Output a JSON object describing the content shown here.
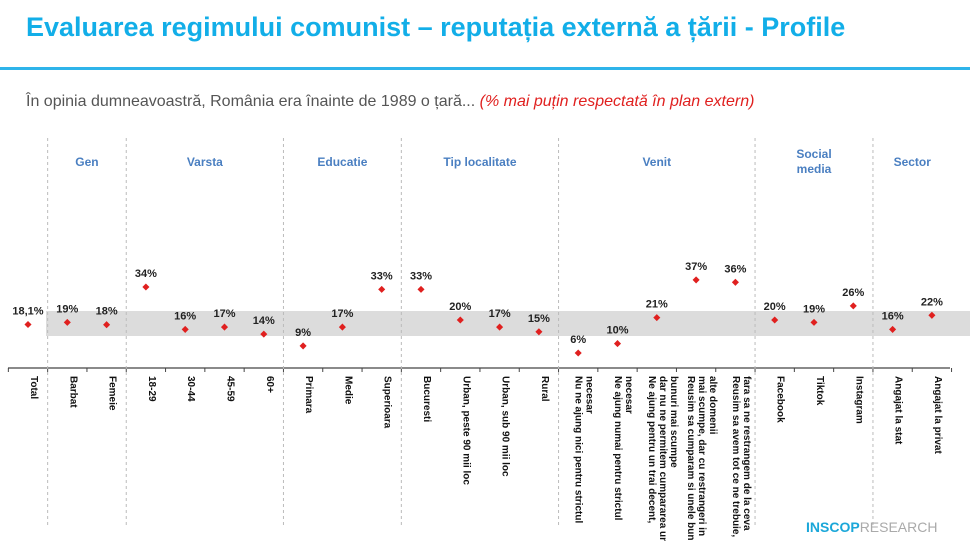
{
  "title": "Evaluarea regimului comunist – reputația externă a țării - Profile",
  "subtitle": "În opinia dumneavoastră, România era înainte de 1989 o țară...",
  "subtitle_highlight": "(% mai puțin respectată în plan extern)",
  "logo": {
    "brand": "INSCOP",
    "suffix": "RESEARCH"
  },
  "colors": {
    "title": "#12aee8",
    "marker": "#e0201f",
    "group_label": "#4a7fc1",
    "band": "#dcdcdc"
  },
  "chart_data": {
    "type": "scatter",
    "groups": [
      {
        "label": "",
        "count": 1
      },
      {
        "label": "Gen",
        "count": 2
      },
      {
        "label": "Varsta",
        "count": 4
      },
      {
        "label": "Educatie",
        "count": 3
      },
      {
        "label": "Tip localitate",
        "count": 4
      },
      {
        "label": "Venit",
        "count": 5
      },
      {
        "label": "Social media",
        "count": 3
      },
      {
        "label": "Sector",
        "count": 2
      }
    ],
    "categories": [
      "Total",
      "Barbat",
      "Femeie",
      "18-29",
      "30-44",
      "45-59",
      "60+",
      "Primara",
      "Medie",
      "Superioara",
      "Bucuresti",
      "Urban, peste 90 mii loc",
      "Urban, sub 90 mii loc",
      "Rural",
      "Nu ne ajung nici pentru strictul necesar",
      "Ne ajung numai pentru strictul necesar",
      "Ne ajung pentru un trai decent, dar nu ne permitem cumpararea unor bunuri mai scumpe",
      "Reusim sa cumparam si unele bunuri mai scumpe, dar cu restrangeri in alte domenii",
      "Reusim sa avem tot ce ne trebuie, fara sa ne restrangem de la ceva",
      "Facebook",
      "Tiktok",
      "Instagram",
      "Angajat la stat",
      "Angajat la privat"
    ],
    "values": [
      18.1,
      19,
      18,
      34,
      16,
      17,
      14,
      9,
      17,
      33,
      33,
      20,
      17,
      15,
      6,
      10,
      21,
      37,
      36,
      20,
      19,
      26,
      16,
      22
    ],
    "labels": [
      "18,1%",
      "19%",
      "18%",
      "34%",
      "16%",
      "17%",
      "14%",
      "9%",
      "17%",
      "33%",
      "33%",
      "20%",
      "17%",
      "15%",
      "6%",
      "10%",
      "21%",
      "37%",
      "36%",
      "20%",
      "19%",
      "26%",
      "16%",
      "22%"
    ],
    "highlight_band": "around total",
    "grid": false
  }
}
